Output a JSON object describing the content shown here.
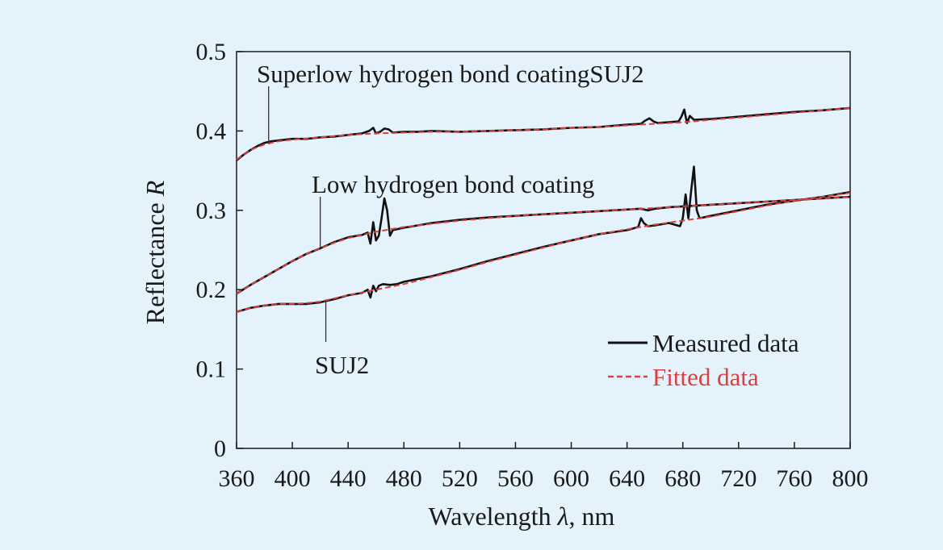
{
  "chart_data": {
    "type": "line",
    "xlabel_prefix": "Wavelength ",
    "xlabel_symbol": "λ",
    "xlabel_suffix": ", nm",
    "ylabel_prefix": "Reflectance ",
    "ylabel_symbol": "R",
    "xlim": [
      360,
      800
    ],
    "ylim": [
      0,
      0.5
    ],
    "x_ticks": [
      360,
      400,
      440,
      480,
      520,
      560,
      600,
      640,
      680,
      720,
      760,
      800
    ],
    "y_ticks": [
      {
        "value": 0,
        "label": "0"
      },
      {
        "value": 0.1,
        "label": "0.1"
      },
      {
        "value": 0.2,
        "label": "0.2"
      },
      {
        "value": 0.3,
        "label": "0.3"
      },
      {
        "value": 0.4,
        "label": "0.4"
      },
      {
        "value": 0.5,
        "label": "0.5"
      }
    ],
    "grid": false,
    "legend_position": "bottom-right",
    "legend": [
      {
        "label": "Measured data",
        "color": "#111111",
        "style": "solid"
      },
      {
        "label": "Fitted data",
        "color": "#d94040",
        "style": "dashed"
      }
    ],
    "annotations": [
      {
        "text": "Superlow hydrogen bond coatingSUJ2",
        "series": "superlow",
        "x": 383
      },
      {
        "text": "Low hydrogen bond coating",
        "series": "low",
        "x": 420
      },
      {
        "text": "SUJ2",
        "series": "suj2",
        "x": 424
      }
    ],
    "series": [
      {
        "id": "superlow",
        "x": [
          360,
          365,
          370,
          375,
          380,
          385,
          390,
          400,
          410,
          420,
          430,
          440,
          450,
          455,
          458,
          460,
          463,
          466,
          469,
          472,
          480,
          490,
          500,
          520,
          540,
          560,
          580,
          600,
          620,
          640,
          650,
          653,
          656,
          659,
          662,
          670,
          677,
          679,
          681,
          683,
          685,
          688,
          700,
          720,
          740,
          760,
          780,
          800
        ],
        "measured": [
          0.363,
          0.37,
          0.376,
          0.381,
          0.385,
          0.387,
          0.388,
          0.39,
          0.39,
          0.392,
          0.393,
          0.395,
          0.397,
          0.4,
          0.404,
          0.397,
          0.399,
          0.403,
          0.402,
          0.398,
          0.399,
          0.399,
          0.4,
          0.399,
          0.4,
          0.401,
          0.402,
          0.404,
          0.405,
          0.408,
          0.409,
          0.413,
          0.416,
          0.412,
          0.41,
          0.411,
          0.412,
          0.418,
          0.427,
          0.41,
          0.419,
          0.414,
          0.415,
          0.418,
          0.421,
          0.424,
          0.426,
          0.429
        ],
        "fitted_x": [
          360,
          370,
          380,
          390,
          400,
          420,
          440,
          460,
          480,
          500,
          520,
          540,
          560,
          580,
          600,
          620,
          640,
          660,
          680,
          700,
          720,
          740,
          760,
          780,
          800
        ],
        "fitted": [
          0.364,
          0.376,
          0.383,
          0.387,
          0.389,
          0.392,
          0.395,
          0.397,
          0.398,
          0.399,
          0.399,
          0.4,
          0.401,
          0.402,
          0.404,
          0.405,
          0.407,
          0.409,
          0.411,
          0.414,
          0.417,
          0.42,
          0.423,
          0.426,
          0.429
        ]
      },
      {
        "id": "low",
        "x": [
          360,
          370,
          380,
          390,
          400,
          410,
          420,
          430,
          440,
          450,
          454,
          456,
          458,
          460,
          462,
          464,
          466,
          468,
          470,
          472,
          480,
          490,
          500,
          520,
          540,
          560,
          580,
          600,
          620,
          640,
          650,
          655,
          660,
          670,
          680,
          690,
          700,
          720,
          740,
          760,
          780,
          800
        ],
        "measured": [
          0.195,
          0.206,
          0.216,
          0.226,
          0.236,
          0.245,
          0.252,
          0.26,
          0.266,
          0.269,
          0.272,
          0.258,
          0.285,
          0.262,
          0.268,
          0.29,
          0.315,
          0.3,
          0.268,
          0.275,
          0.278,
          0.281,
          0.284,
          0.288,
          0.291,
          0.293,
          0.295,
          0.297,
          0.299,
          0.301,
          0.302,
          0.3,
          0.302,
          0.304,
          0.305,
          0.306,
          0.307,
          0.309,
          0.311,
          0.313,
          0.315,
          0.317
        ],
        "fitted_x": [
          360,
          370,
          380,
          390,
          400,
          410,
          420,
          430,
          440,
          450,
          460,
          470,
          480,
          500,
          520,
          540,
          560,
          580,
          600,
          620,
          640,
          660,
          680,
          700,
          720,
          740,
          760,
          780,
          800
        ],
        "fitted": [
          0.195,
          0.206,
          0.216,
          0.226,
          0.236,
          0.245,
          0.252,
          0.259,
          0.265,
          0.269,
          0.273,
          0.276,
          0.279,
          0.283,
          0.287,
          0.29,
          0.293,
          0.295,
          0.297,
          0.299,
          0.301,
          0.303,
          0.305,
          0.307,
          0.309,
          0.311,
          0.313,
          0.315,
          0.317
        ]
      },
      {
        "id": "suj2",
        "x": [
          360,
          370,
          380,
          390,
          400,
          410,
          420,
          430,
          440,
          450,
          454,
          456,
          458,
          460,
          462,
          465,
          470,
          475,
          480,
          500,
          520,
          540,
          560,
          580,
          600,
          620,
          640,
          648,
          650,
          652,
          655,
          660,
          670,
          678,
          680,
          682,
          684,
          686,
          688,
          690,
          692,
          700,
          720,
          740,
          760,
          780,
          800
        ],
        "measured": [
          0.172,
          0.177,
          0.18,
          0.182,
          0.182,
          0.182,
          0.184,
          0.188,
          0.193,
          0.196,
          0.2,
          0.19,
          0.205,
          0.198,
          0.205,
          0.207,
          0.206,
          0.207,
          0.21,
          0.217,
          0.226,
          0.236,
          0.245,
          0.254,
          0.262,
          0.27,
          0.275,
          0.279,
          0.29,
          0.284,
          0.28,
          0.281,
          0.284,
          0.28,
          0.29,
          0.32,
          0.29,
          0.325,
          0.355,
          0.3,
          0.29,
          0.293,
          0.3,
          0.307,
          0.312,
          0.317,
          0.323
        ],
        "fitted_x": [
          360,
          370,
          380,
          390,
          400,
          410,
          420,
          440,
          460,
          480,
          500,
          520,
          540,
          560,
          580,
          600,
          620,
          640,
          660,
          680,
          700,
          720,
          740,
          760,
          780,
          800
        ],
        "fitted": [
          0.172,
          0.177,
          0.18,
          0.182,
          0.182,
          0.183,
          0.185,
          0.193,
          0.2,
          0.207,
          0.216,
          0.225,
          0.235,
          0.244,
          0.253,
          0.262,
          0.27,
          0.276,
          0.282,
          0.287,
          0.292,
          0.299,
          0.306,
          0.312,
          0.317,
          0.322
        ]
      }
    ]
  }
}
